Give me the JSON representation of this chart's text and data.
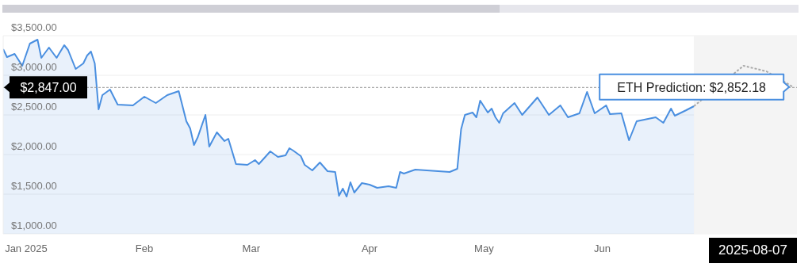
{
  "chart_data": {
    "type": "area",
    "xlim": [
      "2024-12-26",
      "2025-07-22"
    ],
    "xticks": [
      {
        "value": "2025-01-01",
        "label": "Jan 2025"
      },
      {
        "value": "2025-02-01",
        "label": "Feb"
      },
      {
        "value": "2025-03-01",
        "label": "Mar"
      },
      {
        "value": "2025-04-01",
        "label": "Apr"
      },
      {
        "value": "2025-05-01",
        "label": "May"
      },
      {
        "value": "2025-06-01",
        "label": "Jun"
      }
    ],
    "ylim": [
      1000,
      3500
    ],
    "yticks": [
      {
        "value": 1000,
        "label": "$1,000.00"
      },
      {
        "value": 1500,
        "label": "$1,500.00"
      },
      {
        "value": 2000,
        "label": "$2,000.00"
      },
      {
        "value": 2500,
        "label": "$2,500.00"
      },
      {
        "value": 3000,
        "label": "$3,000.00"
      },
      {
        "value": 3500,
        "label": "$3,500.00"
      }
    ],
    "grid": "y",
    "series": [
      {
        "type": "area",
        "color": "#4a8fe0",
        "x": [
          "2024-12-26",
          "2024-12-27",
          "2024-12-29",
          "2024-12-31",
          "2025-01-02",
          "2025-01-04",
          "2025-01-05",
          "2025-01-07",
          "2025-01-09",
          "2025-01-11",
          "2025-01-12",
          "2025-01-14",
          "2025-01-16",
          "2025-01-17",
          "2025-01-18",
          "2025-01-19",
          "2025-01-20",
          "2025-01-21",
          "2025-01-23",
          "2025-01-25",
          "2025-01-29",
          "2025-02-01",
          "2025-02-04",
          "2025-02-07",
          "2025-02-10",
          "2025-02-12",
          "2025-02-13",
          "2025-02-14",
          "2025-02-15",
          "2025-02-17",
          "2025-02-18",
          "2025-02-20",
          "2025-02-22",
          "2025-02-23",
          "2025-02-25",
          "2025-02-28",
          "2025-03-02",
          "2025-03-03",
          "2025-03-06",
          "2025-03-08",
          "2025-03-10",
          "2025-03-11",
          "2025-03-12",
          "2025-03-14",
          "2025-03-15",
          "2025-03-17",
          "2025-03-19",
          "2025-03-21",
          "2025-03-23",
          "2025-03-24",
          "2025-03-25",
          "2025-03-26",
          "2025-03-27",
          "2025-03-28",
          "2025-03-30",
          "2025-04-01",
          "2025-04-03",
          "2025-04-06",
          "2025-04-08",
          "2025-04-09",
          "2025-04-10",
          "2025-04-13",
          "2025-04-22",
          "2025-04-24",
          "2025-04-25",
          "2025-04-26",
          "2025-04-28",
          "2025-04-29",
          "2025-04-30",
          "2025-05-02",
          "2025-05-03",
          "2025-05-04",
          "2025-05-05",
          "2025-05-06",
          "2025-05-09",
          "2025-05-11",
          "2025-05-15",
          "2025-05-18",
          "2025-05-21",
          "2025-05-23",
          "2025-05-26",
          "2025-05-28",
          "2025-05-30",
          "2025-06-02",
          "2025-06-03",
          "2025-06-06",
          "2025-06-08",
          "2025-06-10",
          "2025-06-12",
          "2025-06-15",
          "2025-06-17",
          "2025-06-19",
          "2025-06-20",
          "2025-06-23",
          "2025-06-25"
        ],
        "values": [
          3330,
          3230,
          3270,
          3120,
          3400,
          3450,
          3220,
          3350,
          3220,
          3380,
          3320,
          3080,
          3150,
          3250,
          3300,
          3150,
          2570,
          2750,
          2820,
          2630,
          2620,
          2730,
          2650,
          2750,
          2800,
          2420,
          2330,
          2120,
          2220,
          2500,
          2100,
          2280,
          2170,
          2200,
          1880,
          1870,
          1930,
          1880,
          2040,
          1970,
          1990,
          2080,
          2050,
          1980,
          1870,
          1800,
          1900,
          1790,
          1780,
          1480,
          1570,
          1470,
          1650,
          1520,
          1640,
          1620,
          1580,
          1600,
          1580,
          1780,
          1760,
          1810,
          1780,
          1820,
          2320,
          2500,
          2530,
          2470,
          2680,
          2530,
          2580,
          2470,
          2400,
          2520,
          2650,
          2500,
          2720,
          2500,
          2620,
          2470,
          2520,
          2790,
          2520,
          2620,
          2510,
          2520,
          2180,
          2420,
          2440,
          2470,
          2400,
          2580,
          2490,
          2560,
          2610
        ]
      },
      {
        "type": "line",
        "color": "#aaaaaa",
        "line_style": "dashed",
        "x": [
          "2025-06-25",
          "2025-07-08",
          "2025-07-14",
          "2025-07-21"
        ],
        "values": [
          2610,
          3120,
          3050,
          2852.18
        ]
      }
    ],
    "bands": [
      {
        "axis": "x",
        "from": "2025-06-25",
        "to": "2025-07-22",
        "color": "#f4f4f4"
      }
    ],
    "ref_lines": [
      {
        "axis": "y",
        "value": 2847,
        "label": "$2,847.00",
        "color": "#999999",
        "line_style": "dashed"
      }
    ],
    "annotations": [
      {
        "text": "ETH Prediction: $2,852.18",
        "x": "2025-07-21",
        "y": 2852.18
      },
      "2025-08-07"
    ]
  }
}
